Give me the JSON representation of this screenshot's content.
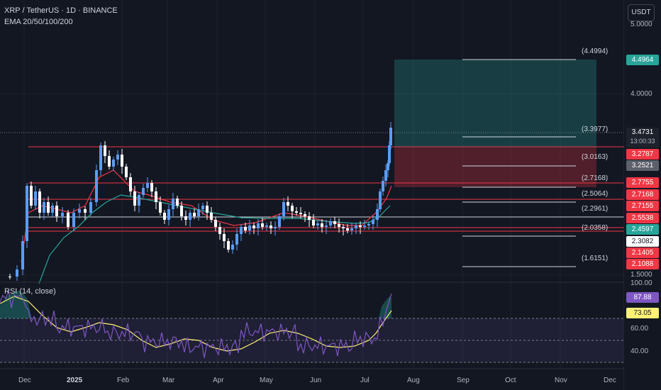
{
  "header": {
    "symbol_line": "XRP / TetherUS · 1D · BINANCE",
    "indicator_line": "EMA 20/50/100/200"
  },
  "currency_button": "USDT",
  "price_axis": {
    "ticks": [
      "5.0000",
      "4.0000",
      "1.5000"
    ]
  },
  "price_badges": [
    {
      "value": "4.4964",
      "color": "#26a69a"
    },
    {
      "value": "3.4731",
      "sub": "13:00:33",
      "color": "#1e222d"
    },
    {
      "value": "3.2787",
      "color": "#f23645"
    },
    {
      "value": "3.2521",
      "color": "#5d606b"
    },
    {
      "value": "2.7755",
      "color": "#f23645"
    },
    {
      "value": "2.7168",
      "color": "#f23645"
    },
    {
      "value": "2.7155",
      "color": "#f23645"
    },
    {
      "value": "2.5538",
      "color": "#f23645"
    },
    {
      "value": "2.4597",
      "color": "#26a69a"
    },
    {
      "value": "2.3082",
      "color": "#ffffff"
    },
    {
      "value": "2.1405",
      "color": "#f23645"
    },
    {
      "value": "2.1088",
      "color": "#f23645"
    }
  ],
  "fib_levels": [
    "(4.4994)",
    "(3.3977)",
    "(3.0163)",
    "(2.7168)",
    "(2.5064)",
    "(2.2961)",
    "(2.0358)",
    "(1.6151)"
  ],
  "rsi": {
    "label": "RSI (14, close)",
    "ticks": [
      "100.00",
      "60.00",
      "40.00"
    ],
    "badges": [
      {
        "value": "87.88",
        "color": "#7e57c2"
      },
      {
        "value": "73.05",
        "color": "#fff176"
      }
    ]
  },
  "time_axis": [
    "Dec",
    "2025",
    "Feb",
    "Mar",
    "Apr",
    "May",
    "Jun",
    "Jul",
    "Aug",
    "Sep",
    "Oct",
    "Nov",
    "Dec"
  ],
  "colors": {
    "background": "#131722",
    "up": "#5b9cf6",
    "down": "#ffffff",
    "resistance": "#f23645",
    "target_zone": "#26a69a",
    "stop_zone": "#f23645",
    "ema20": "#f23645",
    "ema50": "#26a69a",
    "rsi_line": "#7e57c2",
    "rsi_ma": "#fff176"
  }
}
